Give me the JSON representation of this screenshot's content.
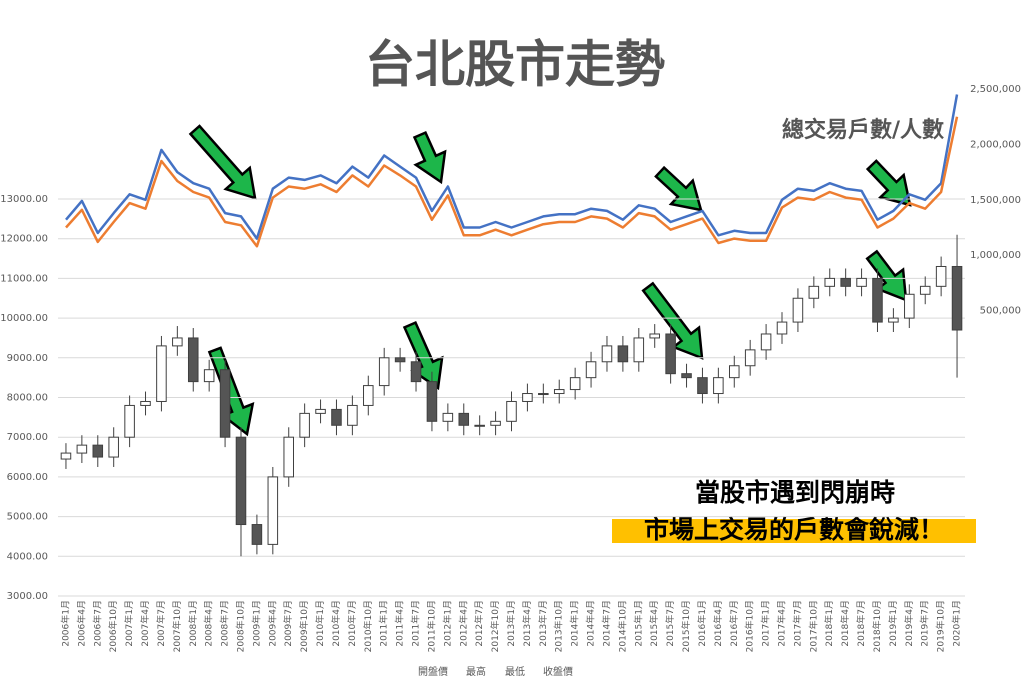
{
  "chart_data": {
    "type": "candlestick",
    "title": "台北股市走勢",
    "annotations": [
      "總交易戶數/人數",
      "當股市遇到閃崩時",
      "市場上交易的戶數會銳減！"
    ],
    "categories": [
      "2006年1月",
      "2006年4月",
      "2006年7月",
      "2006年10月",
      "2007年1月",
      "2007年4月",
      "2007年7月",
      "2007年10月",
      "2008年1月",
      "2008年4月",
      "2008年7月",
      "2008年10月",
      "2009年1月",
      "2009年4月",
      "2009年7月",
      "2009年10月",
      "2010年1月",
      "2010年4月",
      "2010年7月",
      "2010年10月",
      "2011年1月",
      "2011年4月",
      "2011年7月",
      "2011年10月",
      "2012年1月",
      "2012年4月",
      "2012年7月",
      "2012年10月",
      "2013年1月",
      "2013年4月",
      "2013年7月",
      "2013年10月",
      "2014年1月",
      "2014年4月",
      "2014年7月",
      "2014年10月",
      "2015年1月",
      "2015年4月",
      "2015年7月",
      "2015年10月",
      "2016年1月",
      "2016年4月",
      "2016年7月",
      "2016年10月",
      "2017年1月",
      "2017年4月",
      "2017年7月",
      "2017年10月",
      "2018年1月",
      "2018年4月",
      "2018年7月",
      "2018年10月",
      "2019年1月",
      "2019年4月",
      "2019年7月",
      "2019年10月",
      "2020年1月"
    ],
    "series": [
      {
        "name": "開盤價",
        "values": [
          6450,
          6600,
          6800,
          6500,
          7000,
          7800,
          7900,
          9300,
          9500,
          8400,
          8700,
          7000,
          4800,
          4300,
          6000,
          7000,
          7600,
          7700,
          7300,
          7800,
          8300,
          9000,
          8900,
          8400,
          7400,
          7600,
          7300,
          7300,
          7400,
          7900,
          8100,
          8100,
          8200,
          8500,
          8900,
          9300,
          8900,
          9500,
          9600,
          8600,
          8500,
          8100,
          8500,
          8800,
          9200,
          9600,
          9900,
          10500,
          10800,
          11000,
          10800,
          11000,
          9900,
          10000,
          10600,
          10800,
          11300
        ]
      },
      {
        "name": "最高",
        "values": [
          6850,
          7050,
          7050,
          7250,
          8050,
          8150,
          9550,
          9800,
          9750,
          8950,
          8950,
          7250,
          5050,
          6250,
          7250,
          7850,
          7950,
          7950,
          8050,
          8550,
          9250,
          9250,
          9150,
          8650,
          7850,
          7850,
          7550,
          7650,
          8150,
          8350,
          8350,
          8450,
          8750,
          9150,
          9550,
          9550,
          9750,
          9850,
          9850,
          8850,
          8750,
          8750,
          9050,
          9450,
          9850,
          10150,
          10750,
          11050,
          11250,
          11250,
          11250,
          11250,
          10250,
          10850,
          11050,
          11550,
          12100
        ]
      },
      {
        "name": "最低",
        "values": [
          6200,
          6350,
          6250,
          6250,
          6750,
          7550,
          7650,
          9050,
          8150,
          8150,
          6750,
          4000,
          4050,
          4050,
          5750,
          6750,
          7350,
          7050,
          7050,
          7550,
          8050,
          8650,
          8150,
          7150,
          7150,
          7050,
          7050,
          7050,
          7150,
          7650,
          7850,
          7850,
          7950,
          8250,
          8650,
          8650,
          8650,
          9250,
          8350,
          8250,
          7850,
          7850,
          8250,
          8550,
          8950,
          9350,
          9650,
          10250,
          10550,
          10550,
          10550,
          9650,
          9650,
          9750,
          10350,
          10550,
          8500
        ]
      },
      {
        "name": "收盤價",
        "values": [
          6600,
          6800,
          6500,
          7000,
          7800,
          7900,
          9300,
          9500,
          8400,
          8700,
          7000,
          4800,
          4300,
          6000,
          7000,
          7600,
          7700,
          7300,
          7800,
          8300,
          9000,
          8900,
          8400,
          7400,
          7600,
          7300,
          7300,
          7400,
          7900,
          8100,
          8100,
          8200,
          8500,
          8900,
          9300,
          8900,
          9500,
          9600,
          8600,
          8500,
          8100,
          8500,
          8800,
          9200,
          9600,
          9900,
          10500,
          10800,
          11000,
          10800,
          11000,
          9900,
          10000,
          10600,
          10800,
          11300,
          9700
        ]
      }
    ],
    "lines": [
      {
        "color": "#4472c4",
        "axis": "y2",
        "values": [
          1320000,
          1490000,
          1200000,
          1380000,
          1550000,
          1500000,
          1950000,
          1750000,
          1650000,
          1600000,
          1380000,
          1350000,
          1150000,
          1600000,
          1700000,
          1680000,
          1720000,
          1650000,
          1800000,
          1700000,
          1900000,
          1800000,
          1700000,
          1400000,
          1620000,
          1250000,
          1250000,
          1300000,
          1250000,
          1300000,
          1350000,
          1370000,
          1370000,
          1420000,
          1400000,
          1320000,
          1450000,
          1420000,
          1300000,
          1350000,
          1400000,
          1180000,
          1220000,
          1200000,
          1200000,
          1500000,
          1600000,
          1580000,
          1650000,
          1600000,
          1580000,
          1320000,
          1400000,
          1550000,
          1500000,
          1650000,
          2450000
        ]
      },
      {
        "color": "#ed7d31",
        "axis": "y2",
        "values": [
          1250000,
          1410000,
          1120000,
          1300000,
          1470000,
          1420000,
          1850000,
          1670000,
          1570000,
          1520000,
          1300000,
          1270000,
          1080000,
          1520000,
          1620000,
          1600000,
          1640000,
          1570000,
          1720000,
          1620000,
          1810000,
          1720000,
          1620000,
          1320000,
          1540000,
          1180000,
          1180000,
          1230000,
          1180000,
          1230000,
          1280000,
          1300000,
          1300000,
          1350000,
          1330000,
          1250000,
          1380000,
          1350000,
          1230000,
          1280000,
          1330000,
          1110000,
          1150000,
          1130000,
          1130000,
          1430000,
          1520000,
          1500000,
          1570000,
          1520000,
          1500000,
          1250000,
          1330000,
          1470000,
          1420000,
          1570000,
          2250000
        ]
      }
    ],
    "up_color": "#ffffff",
    "down_color": "#555555",
    "ylim": [
      3000,
      13000
    ],
    "yticks": [
      {
        "value": 3000,
        "label": "3000.00"
      },
      {
        "value": 4000,
        "label": "4000.00"
      },
      {
        "value": 5000,
        "label": "5000.00"
      },
      {
        "value": 6000,
        "label": "6000.00"
      },
      {
        "value": 7000,
        "label": "7000.00"
      },
      {
        "value": 8000,
        "label": "8000.00"
      },
      {
        "value": 9000,
        "label": "9000.00"
      },
      {
        "value": 10000,
        "label": "10000.00"
      },
      {
        "value": 11000,
        "label": "11000.00"
      },
      {
        "value": 12000,
        "label": "12000.00"
      },
      {
        "value": 13000,
        "label": "13000.00"
      }
    ],
    "y2lim": [
      0,
      2500000
    ],
    "y2ticks": [
      {
        "value": 500000,
        "label": "500,000"
      },
      {
        "value": 1000000,
        "label": "1,000,000"
      },
      {
        "value": 1500000,
        "label": "1,500,000"
      },
      {
        "value": 2000000,
        "label": "2,000,000"
      },
      {
        "value": 2500000,
        "label": "2,500,000"
      }
    ],
    "grid": true
  }
}
